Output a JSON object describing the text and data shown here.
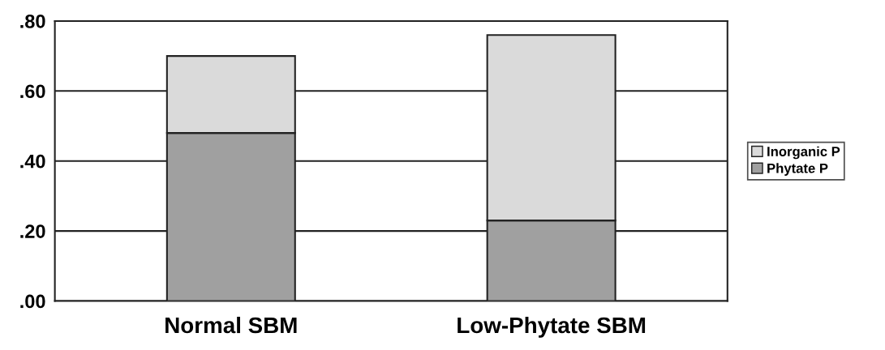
{
  "chart_data": {
    "type": "bar",
    "stacked": true,
    "categories": [
      "Normal SBM",
      "Low-Phytate SBM"
    ],
    "series": [
      {
        "name": "Phytate P",
        "color": "#a0a0a0",
        "values": [
          0.48,
          0.23
        ]
      },
      {
        "name": "Inorganic P",
        "color": "#dadada",
        "values": [
          0.22,
          0.53
        ]
      }
    ],
    "ylim": [
      0,
      0.8
    ],
    "yticks": [
      {
        "value": 0,
        "label": ".00"
      },
      {
        "value": 0.2,
        "label": ".20"
      },
      {
        "value": 0.4,
        "label": ".40"
      },
      {
        "value": 0.6,
        "label": ".60"
      },
      {
        "value": 0.8,
        "label": ".80"
      }
    ],
    "grid": "y",
    "legend": "right"
  }
}
